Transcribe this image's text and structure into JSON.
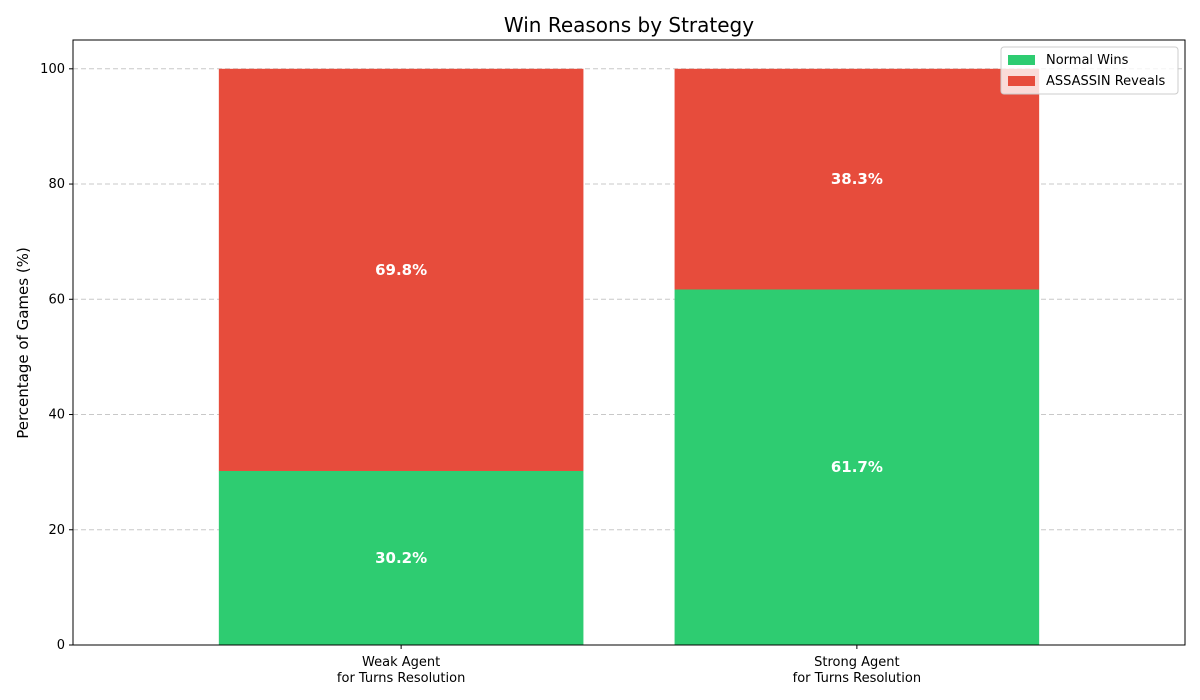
{
  "chart_data": {
    "type": "bar",
    "stacked": true,
    "title": "Win Reasons by Strategy",
    "xlabel": "",
    "ylabel": "Percentage of Games (%)",
    "ylim": [
      0,
      105
    ],
    "yticks": [
      0,
      20,
      40,
      60,
      80,
      100
    ],
    "grid": "y-dashed",
    "legend_position": "top-right",
    "categories": [
      [
        "Weak Agent",
        "for Turns Resolution"
      ],
      [
        "Strong Agent",
        "for Turns Resolution"
      ]
    ],
    "series": [
      {
        "name": "Normal Wins",
        "color": "#2ecc71",
        "values": [
          30.2,
          61.7
        ],
        "labels": [
          "30.2%",
          "61.7%"
        ]
      },
      {
        "name": "ASSASSIN Reveals",
        "color": "#e74c3c",
        "values": [
          69.8,
          38.3
        ],
        "labels": [
          "69.8%",
          "38.3%"
        ]
      }
    ]
  }
}
